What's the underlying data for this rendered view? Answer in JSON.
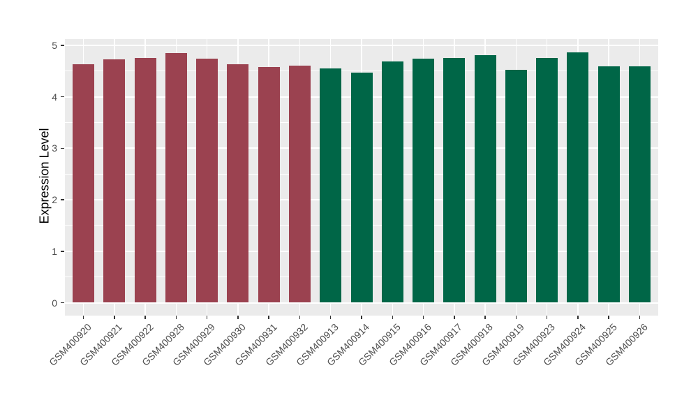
{
  "chart_data": {
    "type": "bar",
    "title": "",
    "xlabel": "",
    "ylabel": "Expression Level",
    "ylim": [
      0,
      5
    ],
    "yticks": [
      0,
      1,
      2,
      3,
      4,
      5
    ],
    "grid": true,
    "legend_position": "none",
    "panel_bg": "#EBEBEB",
    "grid_color": "#FFFFFF",
    "axis_text_color": "#4d4d4d",
    "group_colors": {
      "group1": "#9B4250",
      "group2": "#006647"
    },
    "categories": [
      "GSM400920",
      "GSM400921",
      "GSM400922",
      "GSM400928",
      "GSM400929",
      "GSM400930",
      "GSM400931",
      "GSM400932",
      "GSM400913",
      "GSM400914",
      "GSM400915",
      "GSM400916",
      "GSM400917",
      "GSM400918",
      "GSM400919",
      "GSM400923",
      "GSM400924",
      "GSM400925",
      "GSM400926"
    ],
    "bars": [
      {
        "label": "GSM400920",
        "value": 4.63,
        "color": "#9B4250",
        "group": "group1"
      },
      {
        "label": "GSM400921",
        "value": 4.73,
        "color": "#9B4250",
        "group": "group1"
      },
      {
        "label": "GSM400922",
        "value": 4.76,
        "color": "#9B4250",
        "group": "group1"
      },
      {
        "label": "GSM400928",
        "value": 4.85,
        "color": "#9B4250",
        "group": "group1"
      },
      {
        "label": "GSM400929",
        "value": 4.74,
        "color": "#9B4250",
        "group": "group1"
      },
      {
        "label": "GSM400930",
        "value": 4.63,
        "color": "#9B4250",
        "group": "group1"
      },
      {
        "label": "GSM400931",
        "value": 4.58,
        "color": "#9B4250",
        "group": "group1"
      },
      {
        "label": "GSM400932",
        "value": 4.61,
        "color": "#9B4250",
        "group": "group1"
      },
      {
        "label": "GSM400913",
        "value": 4.55,
        "color": "#006647",
        "group": "group2"
      },
      {
        "label": "GSM400914",
        "value": 4.47,
        "color": "#006647",
        "group": "group2"
      },
      {
        "label": "GSM400915",
        "value": 4.69,
        "color": "#006647",
        "group": "group2"
      },
      {
        "label": "GSM400916",
        "value": 4.74,
        "color": "#006647",
        "group": "group2"
      },
      {
        "label": "GSM400917",
        "value": 4.76,
        "color": "#006647",
        "group": "group2"
      },
      {
        "label": "GSM400918",
        "value": 4.81,
        "color": "#006647",
        "group": "group2"
      },
      {
        "label": "GSM400919",
        "value": 4.53,
        "color": "#006647",
        "group": "group2"
      },
      {
        "label": "GSM400923",
        "value": 4.75,
        "color": "#006647",
        "group": "group2"
      },
      {
        "label": "GSM400924",
        "value": 4.86,
        "color": "#006647",
        "group": "group2"
      },
      {
        "label": "GSM400925",
        "value": 4.59,
        "color": "#006647",
        "group": "group2"
      },
      {
        "label": "GSM400926",
        "value": 4.59,
        "color": "#006647",
        "group": "group2"
      }
    ]
  }
}
